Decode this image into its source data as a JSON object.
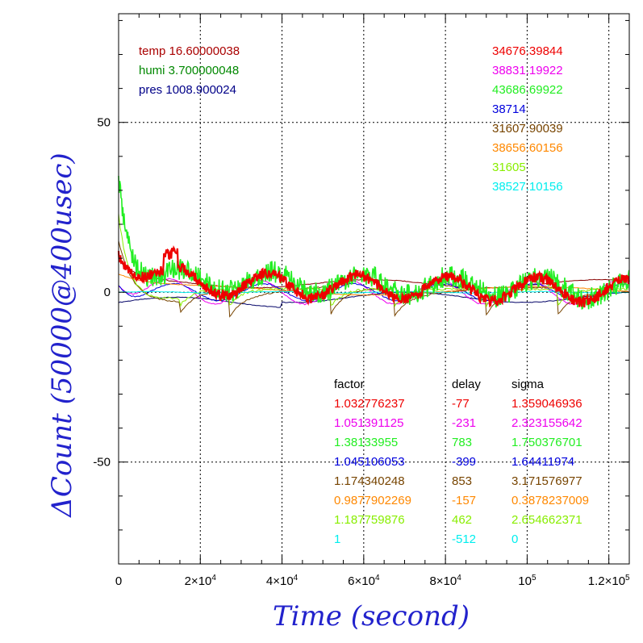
{
  "chart_data": {
    "type": "line",
    "xlabel": "Time (second)",
    "ylabel": "ΔCount (50000@400usec)",
    "xlim": [
      0,
      125000
    ],
    "ylim": [
      -80,
      82
    ],
    "grid": true,
    "x_ticks": [
      {
        "value": 0,
        "label": "0"
      },
      {
        "value": 20000,
        "label": "2×10",
        "exp": "4"
      },
      {
        "value": 40000,
        "label": "4×10",
        "exp": "4"
      },
      {
        "value": 60000,
        "label": "6×10",
        "exp": "4"
      },
      {
        "value": 80000,
        "label": "8×10",
        "exp": "4"
      },
      {
        "value": 100000,
        "label": "10",
        "exp": "5"
      },
      {
        "value": 120000,
        "label": "1.2×10",
        "exp": "5"
      }
    ],
    "y_ticks": [
      {
        "value": 50,
        "label": "50"
      },
      {
        "value": 0,
        "label": "0"
      },
      {
        "value": -50,
        "label": "-50"
      }
    ],
    "env": [
      {
        "label": "temp 16.60000038",
        "color": "#aa0000"
      },
      {
        "label": "humi 3.700000048",
        "color": "#008800"
      },
      {
        "label": "pres 1008.900024",
        "color": "#000088"
      }
    ],
    "table_headers": {
      "factor": "factor",
      "delay": "delay",
      "sigma": "sigma"
    },
    "series": [
      {
        "name": "34676.39844",
        "color": "#ee0000",
        "factor": "1.032776237",
        "delay": "-77",
        "sigma": "1.359046936",
        "shape": "red"
      },
      {
        "name": "38831.19922",
        "color": "#ee00ee",
        "factor": "1.051391125",
        "delay": "-231",
        "sigma": "2.323155642",
        "shape": "magenta"
      },
      {
        "name": "43686.69922",
        "color": "#22ee22",
        "factor": "1.38133955",
        "delay": "783",
        "sigma": "1.750376701",
        "shape": "green"
      },
      {
        "name": "38714",
        "color": "#0000dd",
        "factor": "1.045106053",
        "delay": "-399",
        "sigma": "1.64411974",
        "shape": "blue"
      },
      {
        "name": "31607.90039",
        "color": "#774400",
        "factor": "1.174340248",
        "delay": "853",
        "sigma": "3.171576977",
        "shape": "brown"
      },
      {
        "name": "38656.60156",
        "color": "#ff8800",
        "factor": "0.9877902269",
        "delay": "-157",
        "sigma": "0.3878237009",
        "shape": "orange"
      },
      {
        "name": "31605",
        "color": "#88ee00",
        "factor": "1.187759876",
        "delay": "462",
        "sigma": "2.654662371",
        "shape": "lime"
      },
      {
        "name": "38527.10156",
        "color": "#00eeee",
        "factor": "1",
        "delay": "-512",
        "sigma": "0",
        "shape": "cyan"
      }
    ],
    "extra_lines": [
      {
        "color": "#000066",
        "shape": "navy"
      },
      {
        "color": "#880000",
        "shape": "darkred"
      }
    ]
  }
}
